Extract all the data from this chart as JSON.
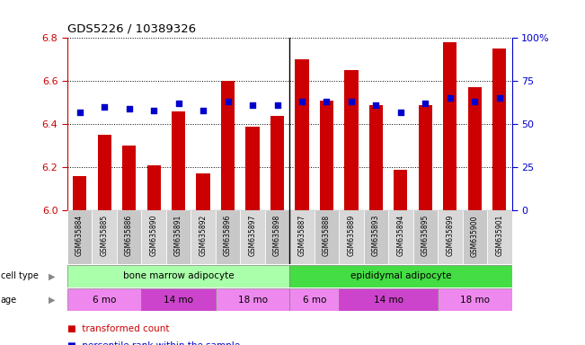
{
  "title": "GDS5226 / 10389326",
  "samples": [
    "GSM635884",
    "GSM635885",
    "GSM635886",
    "GSM635890",
    "GSM635891",
    "GSM635892",
    "GSM635896",
    "GSM635897",
    "GSM635898",
    "GSM635887",
    "GSM635888",
    "GSM635889",
    "GSM635893",
    "GSM635894",
    "GSM635895",
    "GSM635899",
    "GSM635900",
    "GSM635901"
  ],
  "bar_values": [
    6.16,
    6.35,
    6.3,
    6.21,
    6.46,
    6.17,
    6.6,
    6.39,
    6.44,
    6.7,
    6.51,
    6.65,
    6.49,
    6.19,
    6.49,
    6.78,
    6.57,
    6.75
  ],
  "percentiles": [
    57,
    60,
    59,
    58,
    62,
    58,
    63,
    61,
    61,
    63,
    63,
    63,
    61,
    57,
    62,
    65,
    63,
    65
  ],
  "ylim_left": [
    6.0,
    6.8
  ],
  "ylim_right": [
    0,
    100
  ],
  "bar_color": "#cc0000",
  "dot_color": "#0000cc",
  "left_tick_color": "#cc0000",
  "right_tick_color": "#0000cc",
  "yticks_left": [
    6.0,
    6.2,
    6.4,
    6.6,
    6.8
  ],
  "yticks_right": [
    0,
    25,
    50,
    75,
    100
  ],
  "separator_at": 8.5,
  "cell_types": [
    {
      "label": "bone marrow adipocyte",
      "start": 0,
      "end": 9,
      "color": "#aaffaa"
    },
    {
      "label": "epididymal adipocyte",
      "start": 9,
      "end": 18,
      "color": "#44dd44"
    }
  ],
  "age_groups": [
    {
      "label": "6 mo",
      "start": 0,
      "end": 3,
      "color": "#ee88ee"
    },
    {
      "label": "14 mo",
      "start": 3,
      "end": 6,
      "color": "#cc44cc"
    },
    {
      "label": "18 mo",
      "start": 6,
      "end": 9,
      "color": "#ee88ee"
    },
    {
      "label": "6 mo",
      "start": 9,
      "end": 11,
      "color": "#ee88ee"
    },
    {
      "label": "14 mo",
      "start": 11,
      "end": 15,
      "color": "#cc44cc"
    },
    {
      "label": "18 mo",
      "start": 15,
      "end": 18,
      "color": "#ee88ee"
    }
  ]
}
